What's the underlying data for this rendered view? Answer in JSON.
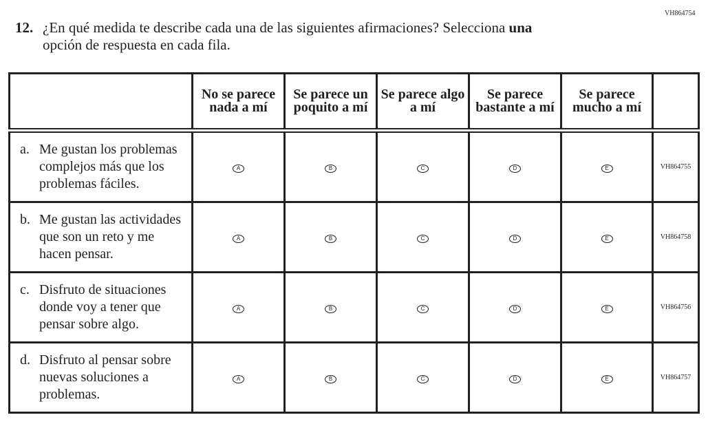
{
  "question_id": "VH864754",
  "question": {
    "number": "12.",
    "text_before": "¿En qué medida te describe cada una de las siguientes afirmaciones? Selecciona ",
    "emphasis": "una",
    "line2": "opción de respuesta en cada fila."
  },
  "columns": [
    "No se parece nada a mí",
    "Se parece un poquito a mí",
    "Se parece algo a mí",
    "Se parece bastante a mí",
    "Se parece mucho a mí"
  ],
  "options": [
    "A",
    "B",
    "C",
    "D",
    "E"
  ],
  "rows": [
    {
      "letter": "a.",
      "text": "Me gustan los problemas complejos más que los problemas fáciles.",
      "code": "VH864755"
    },
    {
      "letter": "b.",
      "text": "Me gustan las actividades que son un reto y me hacen pensar.",
      "code": "VH864758"
    },
    {
      "letter": "c.",
      "text": "Disfruto de situaciones donde voy a tener que pensar sobre algo.",
      "code": "VH864756"
    },
    {
      "letter": "d.",
      "text": "Disfruto al pensar sobre nuevas soluciones a problemas.",
      "code": "VH864757"
    }
  ]
}
